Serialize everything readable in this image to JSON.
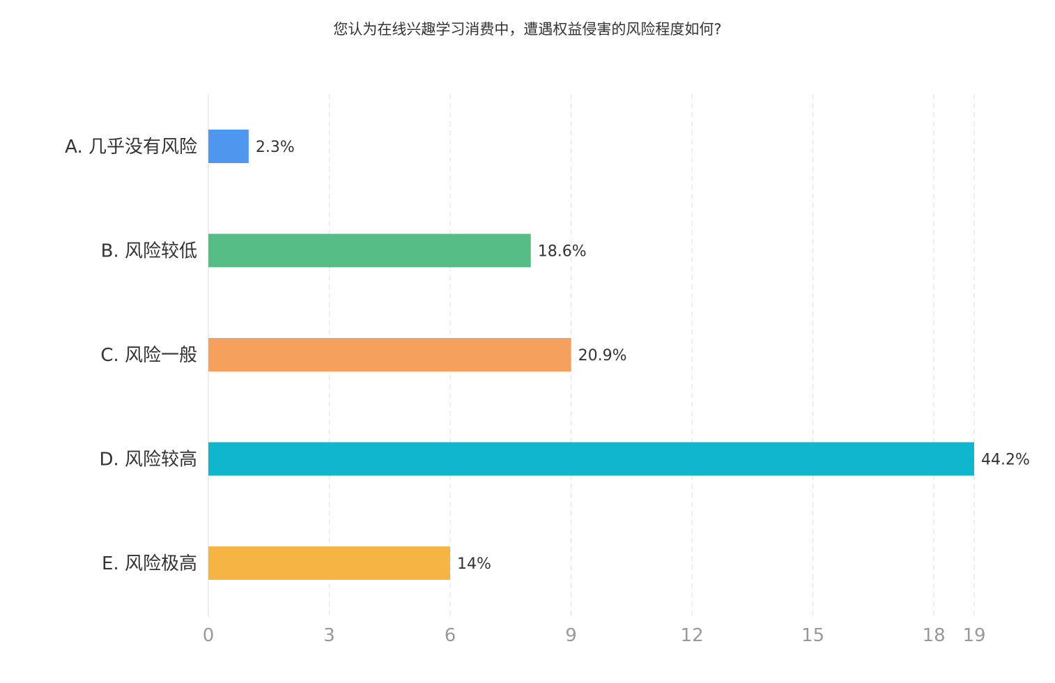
{
  "chart_data": {
    "type": "bar",
    "orientation": "horizontal",
    "title": "您认为在线兴趣学习消费中，遭遇权益侵害的风险程度如何?",
    "categories": [
      "A. 几乎没有风险",
      "B. 风险较低",
      "C. 风险一般",
      "D. 风险较高",
      "E. 风险极高"
    ],
    "values": [
      1,
      8,
      9,
      19,
      6
    ],
    "data_labels": [
      "2.3%",
      "18.6%",
      "20.9%",
      "44.2%",
      "14%"
    ],
    "colors": [
      "#4f96ef",
      "#57bd86",
      "#f5a05d",
      "#10b5ce",
      "#f5b444"
    ],
    "xlim": [
      0,
      19
    ],
    "x_ticks": [
      "0",
      "3",
      "6",
      "9",
      "12",
      "15",
      "18",
      "19"
    ],
    "grid": true,
    "legend": "none"
  }
}
